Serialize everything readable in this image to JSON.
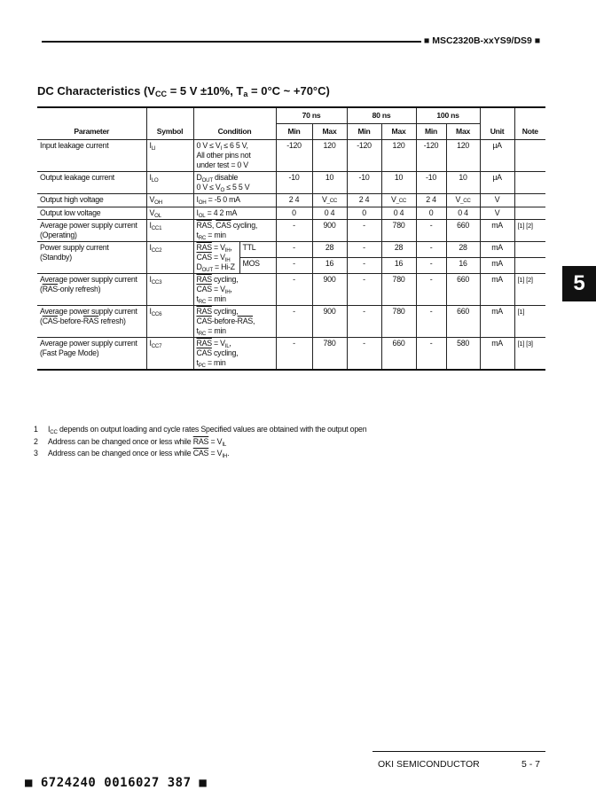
{
  "header": {
    "part_number": "■ MSC2320B-xxYS9/DS9 ■"
  },
  "title": [
    {
      "t": "DC Characteristics (V"
    },
    {
      "t": "CC",
      "sub": 1
    },
    {
      "t": " = 5 V ±10%, T"
    },
    {
      "t": "a",
      "sub": 1
    },
    {
      "t": " = 0°C ~ +70°C)"
    }
  ],
  "table": {
    "headers": {
      "parameter": "Parameter",
      "symbol": "Symbol",
      "condition": "Condition",
      "speeds": [
        "70 ns",
        "80 ns",
        "100 ns"
      ],
      "min": "Min",
      "max": "Max",
      "unit": "Unit",
      "note": "Note"
    },
    "rows": [
      {
        "param": [
          [
            {
              "t": "Input leakage current"
            }
          ]
        ],
        "symbol": [
          {
            "t": "I"
          },
          {
            "t": "LI",
            "sub": 1
          }
        ],
        "condition": [
          [
            {
              "t": "0 V ≤ V"
            },
            {
              "t": "I",
              "sub": 1
            },
            {
              "t": " ≤ 6 5 V,"
            }
          ],
          [
            {
              "t": "All other pins not"
            }
          ],
          [
            {
              "t": "under test = 0 V"
            }
          ]
        ],
        "values": [
          "-120",
          "120",
          "-120",
          "120",
          "-120",
          "120"
        ],
        "unit": "μA",
        "note": ""
      },
      {
        "param": [
          [
            {
              "t": "Output leakage current"
            }
          ]
        ],
        "symbol": [
          {
            "t": "I"
          },
          {
            "t": "LO",
            "sub": 1
          }
        ],
        "condition": [
          [
            {
              "t": "D"
            },
            {
              "t": "OUT",
              "sub": 1
            },
            {
              "t": " disable"
            }
          ],
          [
            {
              "t": "0 V ≤ V"
            },
            {
              "t": "O",
              "sub": 1
            },
            {
              "t": " ≤ 5 5 V"
            }
          ]
        ],
        "values": [
          "-10",
          "10",
          "-10",
          "10",
          "-10",
          "10"
        ],
        "unit": "μA",
        "note": ""
      },
      {
        "param": [
          [
            {
              "t": "Output high voltage"
            }
          ]
        ],
        "symbol": [
          {
            "t": "V"
          },
          {
            "t": "OH",
            "sub": 1
          }
        ],
        "condition": [
          [
            {
              "t": "I"
            },
            {
              "t": "OH",
              "sub": 1
            },
            {
              "t": " = -5 0 mA"
            }
          ]
        ],
        "values": [
          "2 4",
          "V_CC",
          "2 4",
          "V_CC",
          "2 4",
          "V_CC"
        ],
        "unit": "V",
        "note": ""
      },
      {
        "param": [
          [
            {
              "t": "Output low voltage"
            }
          ]
        ],
        "symbol": [
          {
            "t": "V"
          },
          {
            "t": "OL",
            "sub": 1
          }
        ],
        "condition": [
          [
            {
              "t": "I"
            },
            {
              "t": "OL",
              "sub": 1
            },
            {
              "t": " = 4 2 mA"
            }
          ]
        ],
        "values": [
          "0",
          "0 4",
          "0",
          "0 4",
          "0",
          "0 4"
        ],
        "unit": "V",
        "note": ""
      },
      {
        "param": [
          [
            {
              "t": "Average power supply current"
            }
          ],
          [
            {
              "t": "(Operating)"
            }
          ]
        ],
        "symbol": [
          {
            "t": "I"
          },
          {
            "t": "CC1",
            "sub": 1
          }
        ],
        "condition": [
          [
            {
              "t": "RAS",
              "over": 1
            },
            {
              "t": ", "
            },
            {
              "t": "CAS",
              "over": 1
            },
            {
              "t": " cycling,"
            }
          ],
          [
            {
              "t": "t"
            },
            {
              "t": "RC",
              "sub": 1
            },
            {
              "t": " = min"
            }
          ]
        ],
        "values": [
          "-",
          "900",
          "-",
          "780",
          "-",
          "660"
        ],
        "unit": "mA",
        "note": "[1] [2]"
      },
      {
        "param": [
          [
            {
              "t": "Power supply current"
            }
          ],
          [
            {
              "t": "(Standby)"
            }
          ]
        ],
        "symbol": [
          {
            "t": "I"
          },
          {
            "t": "CC2",
            "sub": 1
          }
        ],
        "condition": [
          [
            {
              "t": "RAS",
              "over": 1
            },
            {
              "t": " = V"
            },
            {
              "t": "IH",
              "sub": 1
            },
            {
              "t": ","
            }
          ],
          [
            {
              "t": "CAS",
              "over": 1
            },
            {
              "t": " = V"
            },
            {
              "t": "IH",
              "sub": 1
            }
          ],
          [
            {
              "t": "D"
            },
            {
              "t": "OUT",
              "sub": 1
            },
            {
              "t": " = Hi-Z"
            }
          ]
        ],
        "subrows": [
          {
            "label": "TTL",
            "values": [
              "-",
              "28",
              "-",
              "28",
              "-",
              "28"
            ],
            "unit": "mA",
            "note": ""
          },
          {
            "label": "MOS",
            "values": [
              "-",
              "16",
              "-",
              "16",
              "-",
              "16"
            ],
            "unit": "mA",
            "note": ""
          }
        ]
      },
      {
        "param": [
          [
            {
              "t": "Average power supply current"
            }
          ],
          [
            {
              "t": "("
            },
            {
              "t": "RAS",
              "over": 1
            },
            {
              "t": "-only refresh)"
            }
          ]
        ],
        "symbol": [
          {
            "t": "I"
          },
          {
            "t": "CC3",
            "sub": 1
          }
        ],
        "condition": [
          [
            {
              "t": "RAS",
              "over": 1
            },
            {
              "t": " cycling,"
            }
          ],
          [
            {
              "t": "CAS",
              "over": 1
            },
            {
              "t": " = V"
            },
            {
              "t": "IH",
              "sub": 1
            },
            {
              "t": ","
            }
          ],
          [
            {
              "t": "t"
            },
            {
              "t": "RC",
              "sub": 1
            },
            {
              "t": " = min"
            }
          ]
        ],
        "values": [
          "-",
          "900",
          "-",
          "780",
          "-",
          "660"
        ],
        "unit": "mA",
        "note": "[1] [2]"
      },
      {
        "param": [
          [
            {
              "t": "Average power supply current"
            }
          ],
          [
            {
              "t": "("
            },
            {
              "t": "CAS",
              "over": 1
            },
            {
              "t": "-before-"
            },
            {
              "t": "RAS",
              "over": 1
            },
            {
              "t": " refresh)"
            }
          ]
        ],
        "symbol": [
          {
            "t": "I"
          },
          {
            "t": "CC6",
            "sub": 1
          }
        ],
        "condition": [
          [
            {
              "t": "RAS",
              "over": 1
            },
            {
              "t": " cycling,"
            }
          ],
          [
            {
              "t": "CAS",
              "over": 1
            },
            {
              "t": "-before-"
            },
            {
              "t": "RAS",
              "over": 1
            },
            {
              "t": ","
            }
          ],
          [
            {
              "t": "t"
            },
            {
              "t": "RC",
              "sub": 1
            },
            {
              "t": " = min"
            }
          ]
        ],
        "values": [
          "-",
          "900",
          "-",
          "780",
          "-",
          "660"
        ],
        "unit": "mA",
        "note": "[1]"
      },
      {
        "param": [
          [
            {
              "t": "Average power supply current"
            }
          ],
          [
            {
              "t": "(Fast Page Mode)"
            }
          ]
        ],
        "symbol": [
          {
            "t": "I"
          },
          {
            "t": "CC7",
            "sub": 1
          }
        ],
        "condition": [
          [
            {
              "t": "RAS",
              "over": 1
            },
            {
              "t": " = V"
            },
            {
              "t": "IL",
              "sub": 1
            },
            {
              "t": ","
            }
          ],
          [
            {
              "t": "CAS",
              "over": 1
            },
            {
              "t": " cycling,"
            }
          ],
          [
            {
              "t": "t"
            },
            {
              "t": "PC",
              "sub": 1
            },
            {
              "t": " = min"
            }
          ]
        ],
        "values": [
          "-",
          "780",
          "-",
          "660",
          "-",
          "580"
        ],
        "unit": "mA",
        "note": "[1] [3]"
      }
    ]
  },
  "footnotes": [
    {
      "num": "1",
      "text": [
        {
          "t": "I"
        },
        {
          "t": "CC",
          "sub": 1
        },
        {
          "t": " depends on output loading and cycle rates  Specified values are obtained with the output open"
        }
      ]
    },
    {
      "num": "2",
      "text": [
        {
          "t": "Address can be changed once or less while "
        },
        {
          "t": "RAS",
          "over": 1
        },
        {
          "t": " = V"
        },
        {
          "t": "IL",
          "sub": 1
        }
      ]
    },
    {
      "num": "3",
      "text": [
        {
          "t": "Address can be changed once or less while "
        },
        {
          "t": "CAS",
          "over": 1
        },
        {
          "t": " = V"
        },
        {
          "t": "IH",
          "sub": 1
        },
        {
          "t": "."
        }
      ]
    }
  ],
  "section_tab": "5",
  "footer": {
    "company": "OKI SEMICONDUCTOR",
    "page": "5 - 7",
    "barcode_text": "■ 6724240 0016027 387 ■"
  }
}
